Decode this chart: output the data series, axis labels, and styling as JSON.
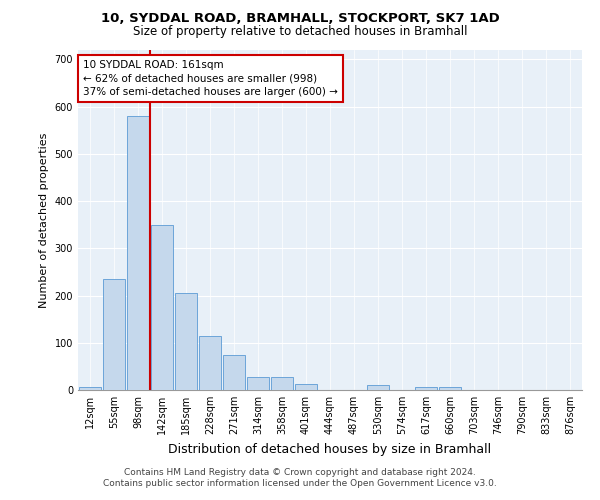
{
  "title_line1": "10, SYDDAL ROAD, BRAMHALL, STOCKPORT, SK7 1AD",
  "title_line2": "Size of property relative to detached houses in Bramhall",
  "xlabel": "Distribution of detached houses by size in Bramhall",
  "ylabel": "Number of detached properties",
  "bin_labels": [
    "12sqm",
    "55sqm",
    "98sqm",
    "142sqm",
    "185sqm",
    "228sqm",
    "271sqm",
    "314sqm",
    "358sqm",
    "401sqm",
    "444sqm",
    "487sqm",
    "530sqm",
    "574sqm",
    "617sqm",
    "660sqm",
    "703sqm",
    "746sqm",
    "790sqm",
    "833sqm",
    "876sqm"
  ],
  "bar_values": [
    7,
    235,
    580,
    350,
    205,
    115,
    75,
    27,
    27,
    13,
    0,
    0,
    10,
    0,
    6,
    6,
    0,
    0,
    0,
    0,
    0
  ],
  "bar_color": "#c5d8ec",
  "bar_edge_color": "#5b9bd5",
  "vline_color": "#cc0000",
  "annotation_text": "10 SYDDAL ROAD: 161sqm\n← 62% of detached houses are smaller (998)\n37% of semi-detached houses are larger (600) →",
  "annotation_box_color": "white",
  "annotation_box_edge": "#cc0000",
  "ylim": [
    0,
    720
  ],
  "yticks": [
    0,
    100,
    200,
    300,
    400,
    500,
    600,
    700
  ],
  "background_color": "#e8f0f8",
  "grid_color": "#d0dce8",
  "footer_line1": "Contains HM Land Registry data © Crown copyright and database right 2024.",
  "footer_line2": "Contains public sector information licensed under the Open Government Licence v3.0.",
  "title_fontsize": 9.5,
  "subtitle_fontsize": 8.5,
  "axis_label_fontsize": 8,
  "tick_fontsize": 7,
  "annotation_fontsize": 7.5,
  "footer_fontsize": 6.5
}
